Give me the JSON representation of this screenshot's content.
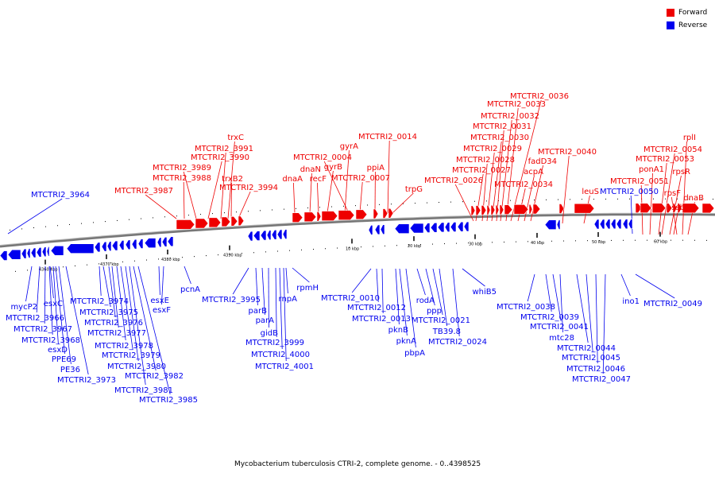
{
  "colors": {
    "forward": "#ee0000",
    "reverse": "#0000ee",
    "backbone": "#777777"
  },
  "legend": [
    {
      "label": "Forward",
      "color": "#ee0000"
    },
    {
      "label": "Reverse",
      "color": "#0000ee"
    }
  ],
  "caption": "Mycobacterium tuberculosis CTRI-2, complete genome. - 0..4398525",
  "ticks": [
    "4360 kbp",
    "4370 kbp",
    "4380 kbp",
    "4390 kbp",
    "10 kbp",
    "20 kbp",
    "30 kbp",
    "40 kbp",
    "50 kbp",
    "60 kbp"
  ],
  "forward_labels": [
    "MTCTRI2_3964",
    "MTCTRI2_3987",
    "MTCTRI2_3988",
    "MTCTRI2_3989",
    "MTCTRI2_3990",
    "MTCTRI2_3991",
    "trxC",
    "trxB2",
    "MTCTRI2_3994",
    "dnaA",
    "dnaN",
    "recF",
    "gyrB",
    "gyrA",
    "MTCTRI2_0004",
    "MTCTRI2_0007",
    "ppiA",
    "MTCTRI2_0014",
    "trpG",
    "MTCTRI2_0026",
    "MTCTRI2_0027",
    "MTCTRI2_0028",
    "MTCTRI2_0029",
    "MTCTRI2_0030",
    "MTCTRI2_0031",
    "MTCTRI2_0032",
    "MTCTRI2_0033",
    "MTCTRI2_0036",
    "MTCTRI2_0034",
    "acpA",
    "fadD34",
    "MTCTRI2_0040",
    "leuS",
    "MTCTRI2_0050",
    "MTCTRI2_0051",
    "ponA1",
    "MTCTRI2_0053",
    "MTCTRI2_0054",
    "rpsR",
    "ssb",
    "rpsF",
    "rplI",
    "dnaB"
  ],
  "reverse_labels": [
    "mycP2",
    "MTCTRI2_3966",
    "MTCTRI2_3967",
    "MTCTRI2_3968",
    "esxC",
    "esxD",
    "PPE69",
    "PE36",
    "MTCTRI2_3973",
    "MTCTRI2_3974",
    "MTCTRI2_3975",
    "MTCTRI2_3976",
    "MTCTRI2_3977",
    "MTCTRI2_3978",
    "MTCTRI2_3979",
    "MTCTRI2_3980",
    "MTCTRI2_3981",
    "MTCTRI2_3982",
    "MTCTRI2_3985",
    "esxE",
    "esxF",
    "pcnA",
    "MTCTRI2_3995",
    "parB",
    "parA",
    "gidB",
    "MTCTRI2_3999",
    "MTCTRI2_4000",
    "MTCTRI2_4001",
    "rnpA",
    "rpmH",
    "MTCTRI2_0010",
    "MTCTRI2_0012",
    "MTCTRI2_0013",
    "pknB",
    "pknA",
    "pbpA",
    "rodA",
    "ppp",
    "MTCTRI2_0021",
    "TB39.8",
    "MTCTRI2_0024",
    "whiB5",
    "MTCTRI2_0038",
    "MTCTRI2_0039",
    "MTCTRI2_0041",
    "mtc28",
    "MTCTRI2_0044",
    "MTCTRI2_0045",
    "MTCTRI2_0046",
    "MTCTRI2_0047",
    "ino1",
    "MTCTRI2_0049"
  ]
}
